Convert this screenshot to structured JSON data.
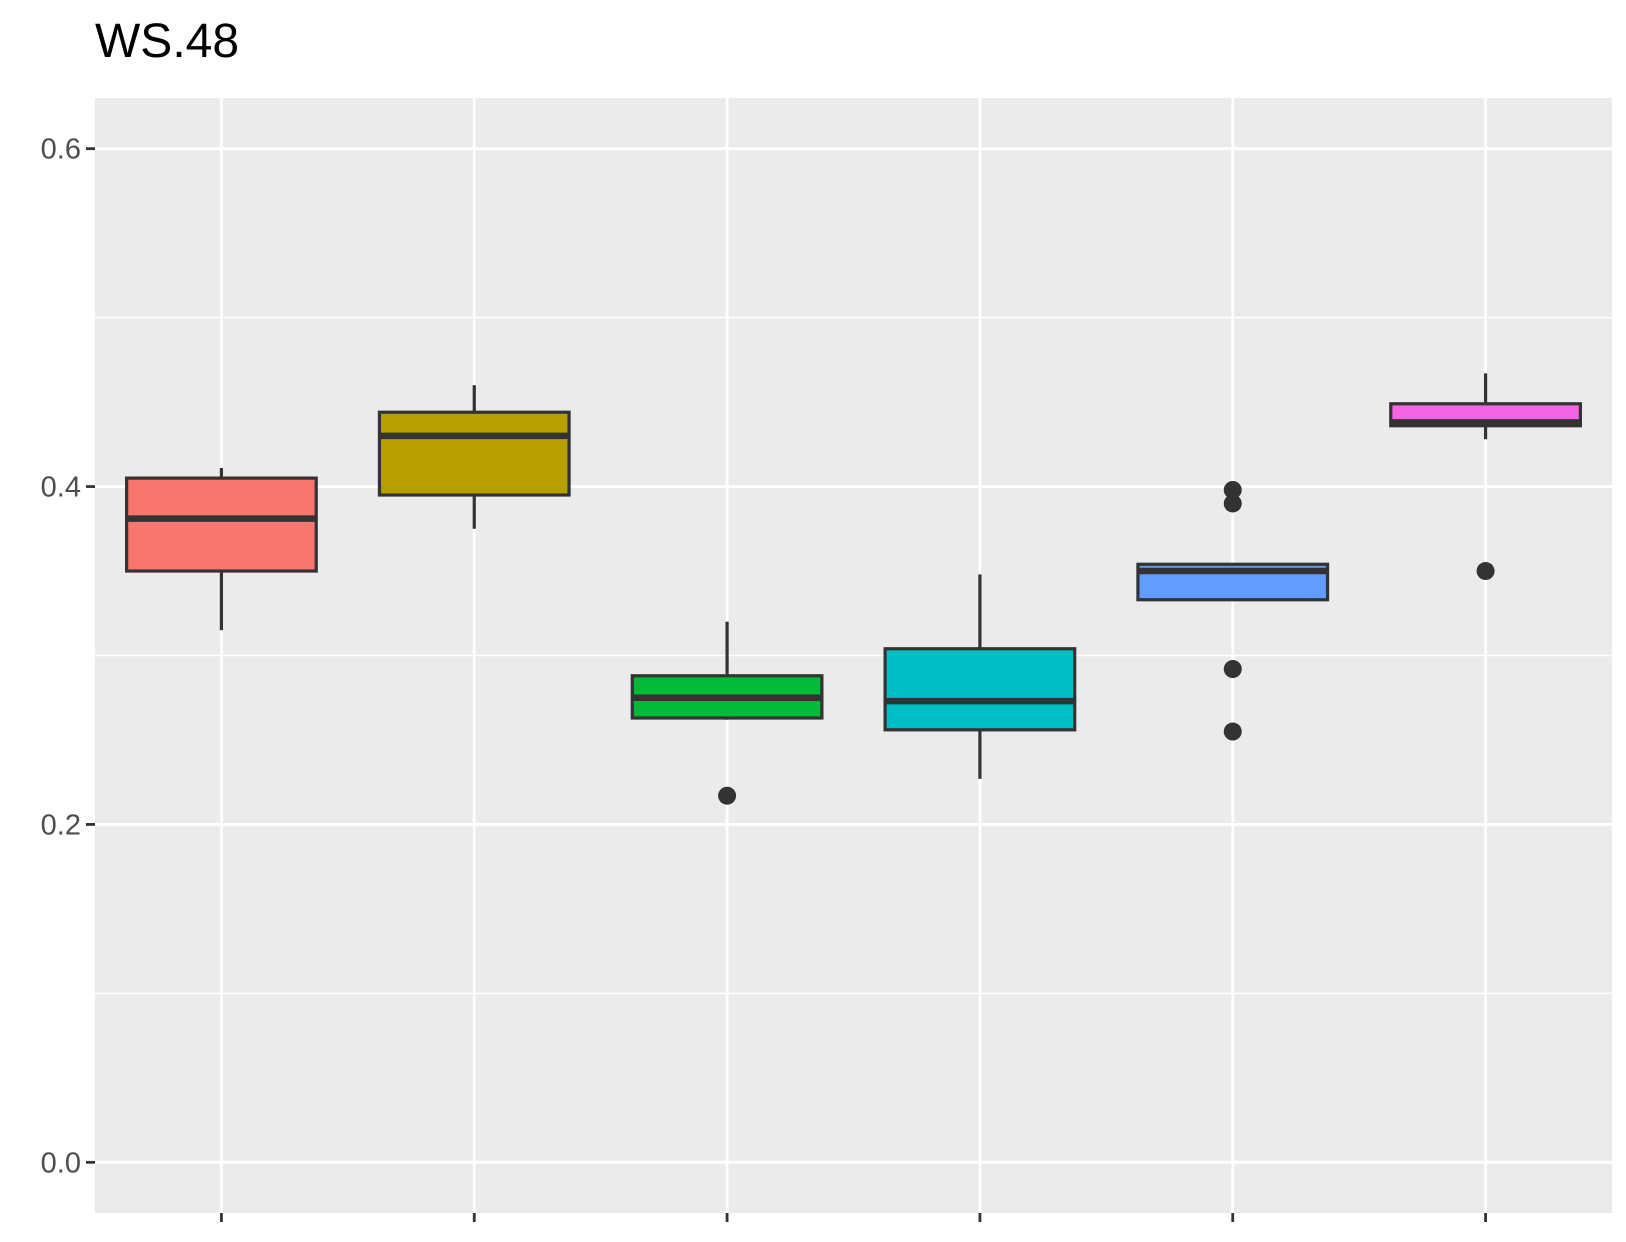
{
  "chart_data": {
    "type": "boxplot",
    "title": "WS.48",
    "xlabel": "",
    "ylabel": "",
    "ylim": [
      -0.03,
      0.63
    ],
    "y_ticks": [
      0.0,
      0.2,
      0.4,
      0.6
    ],
    "y_tick_labels": [
      "0.0",
      "0.2",
      "0.4",
      "0.6"
    ],
    "grid": true,
    "legend": "none",
    "panel_background": "#ebebeb",
    "box_outline": "#333333",
    "boxes": [
      {
        "fill": "#f8766d",
        "whisker_low": 0.315,
        "q1": 0.35,
        "median": 0.381,
        "q3": 0.405,
        "whisker_high": 0.411,
        "outliers": []
      },
      {
        "fill": "#b79f00",
        "whisker_low": 0.375,
        "q1": 0.395,
        "median": 0.43,
        "q3": 0.444,
        "whisker_high": 0.46,
        "outliers": []
      },
      {
        "fill": "#00ba38",
        "whisker_low": 0.262,
        "q1": 0.263,
        "median": 0.275,
        "q3": 0.288,
        "whisker_high": 0.32,
        "outliers": [
          0.217
        ]
      },
      {
        "fill": "#00bfc4",
        "whisker_low": 0.227,
        "q1": 0.256,
        "median": 0.273,
        "q3": 0.304,
        "whisker_high": 0.348,
        "outliers": []
      },
      {
        "fill": "#619cff",
        "whisker_low": 0.333,
        "q1": 0.333,
        "median": 0.35,
        "q3": 0.354,
        "whisker_high": 0.354,
        "outliers": [
          0.398,
          0.39,
          0.292,
          0.255
        ]
      },
      {
        "fill": "#f564e3",
        "whisker_low": 0.428,
        "q1": 0.436,
        "median": 0.438,
        "q3": 0.449,
        "whisker_high": 0.467,
        "outliers": [
          0.35
        ]
      }
    ]
  }
}
